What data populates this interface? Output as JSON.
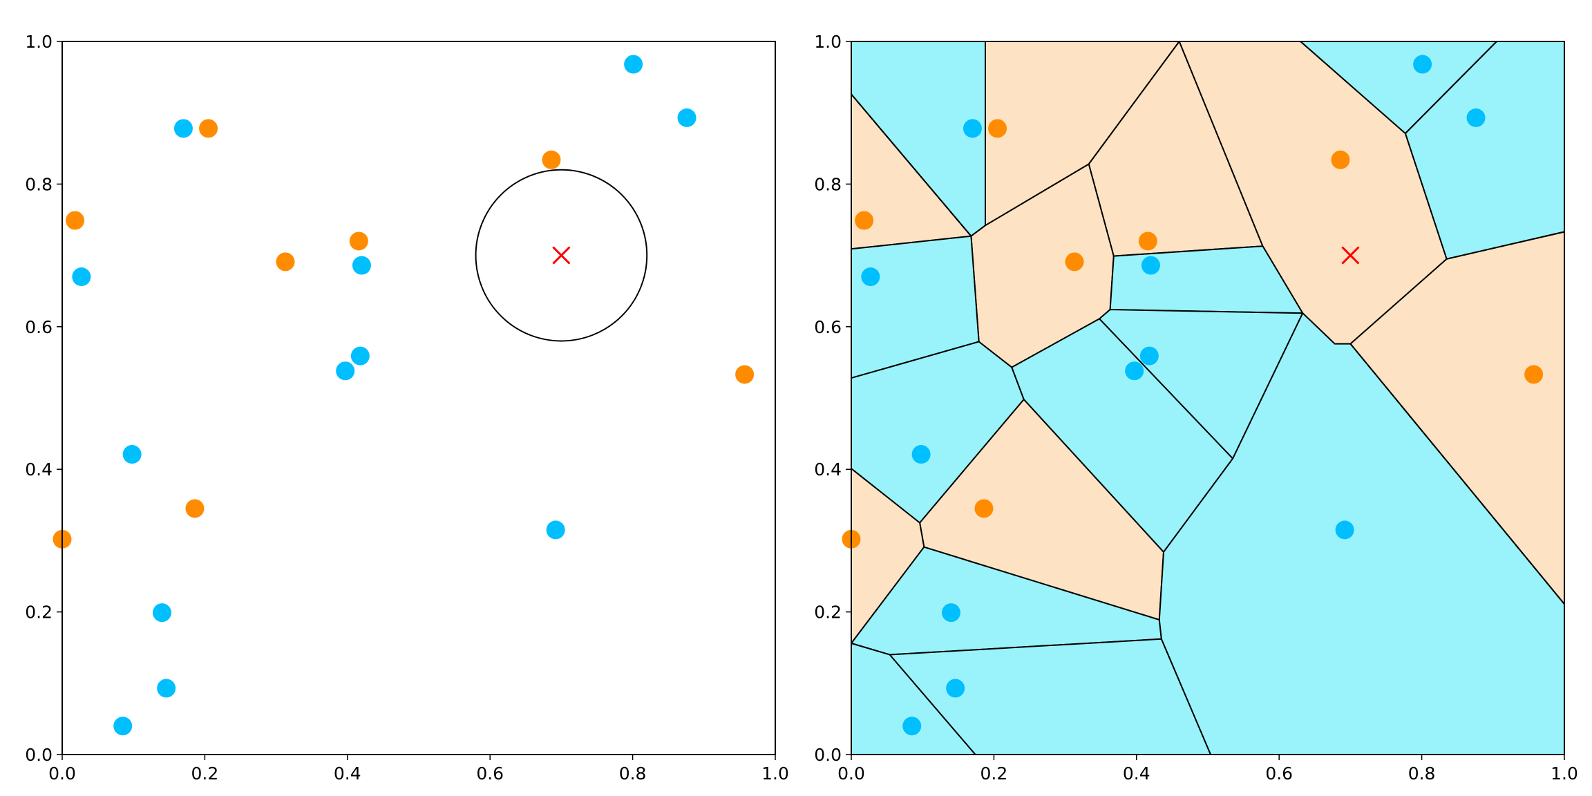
{
  "colors": {
    "orange": "#ff8c00",
    "blue": "#00bfff",
    "orange_region": "#fde3c3",
    "blue_region": "#9af3fb",
    "query_marker": "#ff0000",
    "edge": "#000000"
  },
  "chart_data": [
    {
      "type": "scatter",
      "title": "",
      "xlabel": "",
      "ylabel": "",
      "xlim": [
        0,
        1
      ],
      "ylim": [
        0,
        1
      ],
      "grid": false,
      "xticks": [
        "0.0",
        "0.2",
        "0.4",
        "0.6",
        "0.8",
        "1.0"
      ],
      "yticks": [
        "0.0",
        "0.2",
        "0.4",
        "0.6",
        "0.8",
        "1.0"
      ],
      "series": [
        {
          "color": "#ff8c00",
          "points": [
            [
              0.205,
              0.878
            ],
            [
              0.018,
              0.749
            ],
            [
              0.313,
              0.691
            ],
            [
              0.416,
              0.72
            ],
            [
              0.686,
              0.834
            ],
            [
              0.957,
              0.533
            ],
            [
              0.186,
              0.345
            ],
            [
              0.0,
              0.302
            ]
          ]
        },
        {
          "color": "#00bfff",
          "points": [
            [
              0.17,
              0.878
            ],
            [
              0.027,
              0.67
            ],
            [
              0.42,
              0.686
            ],
            [
              0.418,
              0.559
            ],
            [
              0.397,
              0.538
            ],
            [
              0.098,
              0.421
            ],
            [
              0.14,
              0.199
            ],
            [
              0.146,
              0.093
            ],
            [
              0.085,
              0.04
            ],
            [
              0.692,
              0.315
            ],
            [
              0.801,
              0.968
            ],
            [
              0.876,
              0.893
            ]
          ]
        }
      ],
      "query_point": [
        0.7,
        0.7
      ],
      "circle": {
        "center": [
          0.7,
          0.7
        ],
        "radius": 0.12
      }
    },
    {
      "type": "scatter",
      "title": "",
      "xlabel": "",
      "ylabel": "",
      "xlim": [
        0,
        1
      ],
      "ylim": [
        0,
        1
      ],
      "grid": false,
      "xticks": [
        "0.0",
        "0.2",
        "0.4",
        "0.6",
        "0.8",
        "1.0"
      ],
      "yticks": [
        "0.0",
        "0.2",
        "0.4",
        "0.6",
        "0.8",
        "1.0"
      ],
      "series": [
        {
          "color": "#ff8c00",
          "points": [
            [
              0.205,
              0.878
            ],
            [
              0.018,
              0.749
            ],
            [
              0.313,
              0.691
            ],
            [
              0.416,
              0.72
            ],
            [
              0.686,
              0.834
            ],
            [
              0.957,
              0.533
            ],
            [
              0.186,
              0.345
            ],
            [
              0.0,
              0.302
            ]
          ]
        },
        {
          "color": "#00bfff",
          "points": [
            [
              0.17,
              0.878
            ],
            [
              0.027,
              0.67
            ],
            [
              0.42,
              0.686
            ],
            [
              0.418,
              0.559
            ],
            [
              0.397,
              0.538
            ],
            [
              0.098,
              0.421
            ],
            [
              0.14,
              0.199
            ],
            [
              0.146,
              0.093
            ],
            [
              0.085,
              0.04
            ],
            [
              0.692,
              0.315
            ],
            [
              0.801,
              0.968
            ],
            [
              0.876,
              0.893
            ]
          ]
        }
      ],
      "query_point": [
        0.7,
        0.7
      ],
      "voronoi_cells": [
        {
          "class": "blue",
          "polygon": [
            [
              0,
              1
            ],
            [
              0.188,
              1
            ],
            [
              0.188,
              0.742
            ],
            [
              0.168,
              0.727
            ],
            [
              0,
              0.926
            ]
          ]
        },
        {
          "class": "orange",
          "polygon": [
            [
              0,
              0.926
            ],
            [
              0.168,
              0.727
            ],
            [
              0,
              0.709
            ]
          ]
        },
        {
          "class": "orange",
          "polygon": [
            [
              0.188,
              1
            ],
            [
              0.46,
              1
            ],
            [
              0.333,
              0.828
            ],
            [
              0.188,
              0.742
            ]
          ]
        },
        {
          "class": "orange",
          "polygon": [
            [
              0.46,
              1
            ],
            [
              0.577,
              0.713
            ],
            [
              0.368,
              0.699
            ],
            [
              0.333,
              0.828
            ]
          ]
        },
        {
          "class": "orange",
          "polygon": [
            [
              0.46,
              1
            ],
            [
              0.63,
              1
            ],
            [
              0.777,
              0.871
            ],
            [
              0.835,
              0.695
            ],
            [
              0.7,
              0.576
            ],
            [
              0.678,
              0.576
            ],
            [
              0.633,
              0.619
            ],
            [
              0.577,
              0.713
            ]
          ]
        },
        {
          "class": "blue",
          "polygon": [
            [
              0.63,
              1
            ],
            [
              0.905,
              1
            ],
            [
              0.777,
              0.871
            ]
          ]
        },
        {
          "class": "blue",
          "polygon": [
            [
              0.905,
              1
            ],
            [
              1,
              1
            ],
            [
              1,
              0.733
            ],
            [
              0.835,
              0.695
            ],
            [
              0.777,
              0.871
            ]
          ]
        },
        {
          "class": "orange",
          "polygon": [
            [
              1,
              0.733
            ],
            [
              1,
              0.211
            ],
            [
              0.7,
              0.576
            ],
            [
              0.835,
              0.695
            ]
          ]
        },
        {
          "class": "orange",
          "polygon": [
            [
              0.168,
              0.727
            ],
            [
              0.188,
              0.742
            ],
            [
              0.333,
              0.828
            ],
            [
              0.368,
              0.699
            ],
            [
              0.363,
              0.624
            ],
            [
              0.348,
              0.611
            ],
            [
              0.225,
              0.543
            ],
            [
              0.179,
              0.579
            ]
          ]
        },
        {
          "class": "blue",
          "polygon": [
            [
              0,
              0.709
            ],
            [
              0.168,
              0.727
            ],
            [
              0.179,
              0.579
            ],
            [
              0,
              0.528
            ]
          ]
        },
        {
          "class": "blue",
          "polygon": [
            [
              0.368,
              0.699
            ],
            [
              0.577,
              0.713
            ],
            [
              0.633,
              0.619
            ],
            [
              0.363,
              0.624
            ]
          ]
        },
        {
          "class": "blue",
          "polygon": [
            [
              0.363,
              0.624
            ],
            [
              0.633,
              0.619
            ],
            [
              0.535,
              0.415
            ],
            [
              0.348,
              0.611
            ]
          ]
        },
        {
          "class": "blue",
          "polygon": [
            [
              0.348,
              0.611
            ],
            [
              0.535,
              0.415
            ],
            [
              0.438,
              0.284
            ],
            [
              0.242,
              0.498
            ],
            [
              0.225,
              0.543
            ]
          ]
        },
        {
          "class": "blue",
          "polygon": [
            [
              0,
              0.528
            ],
            [
              0.179,
              0.579
            ],
            [
              0.225,
              0.543
            ],
            [
              0.242,
              0.498
            ],
            [
              0.096,
              0.325
            ],
            [
              0,
              0.401
            ]
          ]
        },
        {
          "class": "orange",
          "polygon": [
            [
              0.242,
              0.498
            ],
            [
              0.438,
              0.284
            ],
            [
              0.432,
              0.189
            ],
            [
              0.102,
              0.291
            ],
            [
              0.096,
              0.325
            ]
          ]
        },
        {
          "class": "orange",
          "polygon": [
            [
              0,
              0.401
            ],
            [
              0.096,
              0.325
            ],
            [
              0.102,
              0.291
            ],
            [
              0,
              0.156
            ]
          ]
        },
        {
          "class": "blue",
          "polygon": [
            [
              0.102,
              0.291
            ],
            [
              0.432,
              0.189
            ],
            [
              0.435,
              0.162
            ],
            [
              0.054,
              0.14
            ],
            [
              0,
              0.156
            ]
          ]
        },
        {
          "class": "blue",
          "polygon": [
            [
              0,
              0.156
            ],
            [
              0.054,
              0.14
            ],
            [
              0.174,
              0
            ],
            [
              0,
              0
            ]
          ]
        },
        {
          "class": "blue",
          "polygon": [
            [
              0.054,
              0.14
            ],
            [
              0.435,
              0.162
            ],
            [
              0.504,
              0
            ],
            [
              0.174,
              0
            ]
          ]
        },
        {
          "class": "blue",
          "polygon": [
            [
              0.435,
              0.162
            ],
            [
              0.432,
              0.189
            ],
            [
              0.438,
              0.284
            ],
            [
              0.535,
              0.415
            ],
            [
              0.633,
              0.619
            ],
            [
              0.678,
              0.576
            ],
            [
              0.7,
              0.576
            ],
            [
              1,
              0.211
            ],
            [
              1,
              0
            ],
            [
              0.504,
              0
            ]
          ]
        }
      ],
      "dashed_edges": [
        [
          [
            0,
            0.926
          ],
          [
            0.168,
            0.727
          ]
        ],
        [
          [
            0.777,
            0.871
          ],
          [
            0.905,
            1
          ]
        ],
        [
          [
            0.835,
            0.695
          ],
          [
            1,
            0.733
          ]
        ],
        [
          [
            0.7,
            0.576
          ],
          [
            1,
            0.211
          ]
        ]
      ]
    }
  ]
}
